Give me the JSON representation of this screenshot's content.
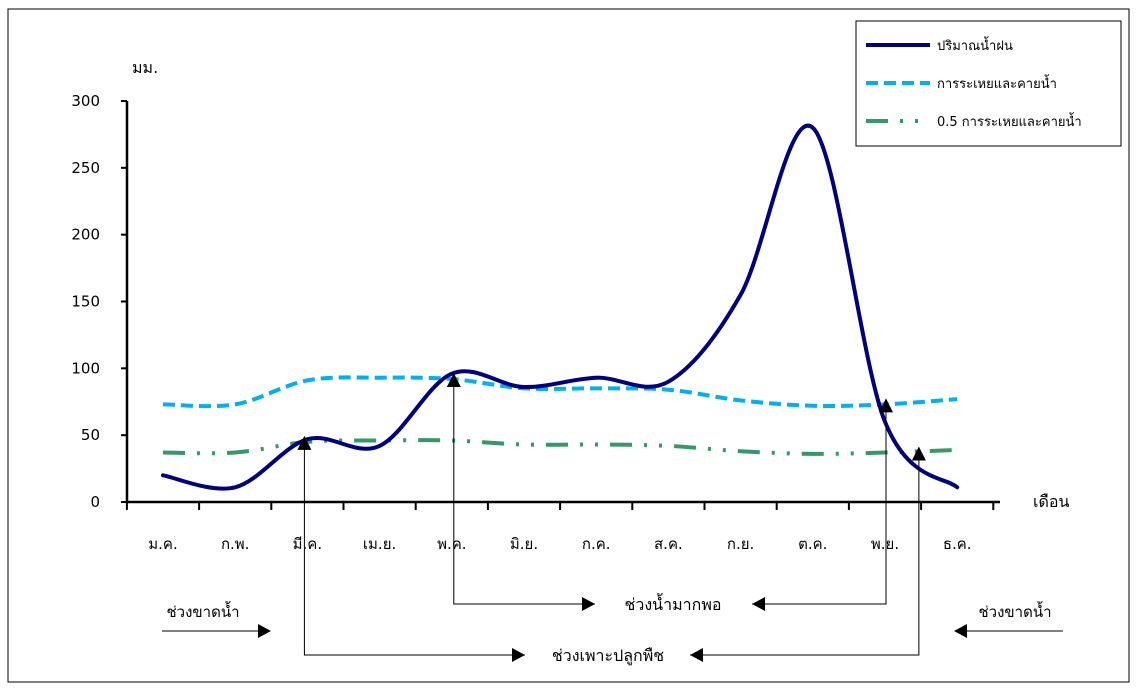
{
  "chart_data": {
    "type": "line",
    "ylabel": "มม.",
    "xlabel": "เดือน",
    "ylim": [
      0,
      300
    ],
    "yticks": [
      0,
      50,
      100,
      150,
      200,
      250,
      300
    ],
    "categories": [
      "ม.ค.",
      "ก.พ.",
      "มี.ค.",
      "เม.ย.",
      "พ.ค.",
      "มิ.ย.",
      "ก.ค.",
      "ส.ค.",
      "ก.ย.",
      "ต.ค.",
      "พ.ย.",
      "ธ.ค."
    ],
    "legend_position": "top-right",
    "grid": false,
    "series": [
      {
        "name": "ปริมาณน้ำฝน",
        "color": "#000080",
        "style": "solid",
        "values": [
          20,
          11,
          47,
          42,
          96,
          86,
          93,
          90,
          155,
          280,
          60,
          11
        ]
      },
      {
        "name": "การระเหยและคายน้ำ",
        "color": "#00b0f0",
        "style": "dashed",
        "values": [
          73,
          73,
          91,
          93,
          92,
          85,
          85,
          84,
          76,
          72,
          73,
          77
        ]
      },
      {
        "name": "0.5 การระเหยและคายน้ำ",
        "color": "#339966",
        "style": "dash-dot-dot",
        "values": [
          37,
          37,
          45,
          46,
          46,
          43,
          43,
          42,
          38,
          36,
          37,
          39
        ]
      }
    ],
    "annotations": {
      "markers": [
        {
          "x_index": 2,
          "value": 45
        },
        {
          "x_index": 4,
          "value": 92
        },
        {
          "x_index": 10,
          "value": 73
        },
        {
          "x_index": 10.4,
          "value": 37
        }
      ],
      "periods": [
        {
          "label": "ช่วงน้ำมากพอ",
          "from_index": 4,
          "to_index": 10
        },
        {
          "label": "ช่วงเพาะปลูกพืช",
          "from_index": 2,
          "to_index": 10.4
        }
      ],
      "dry_left": "ช่วงขาดน้ำ",
      "dry_right": "ช่วงขาดน้ำ"
    }
  }
}
